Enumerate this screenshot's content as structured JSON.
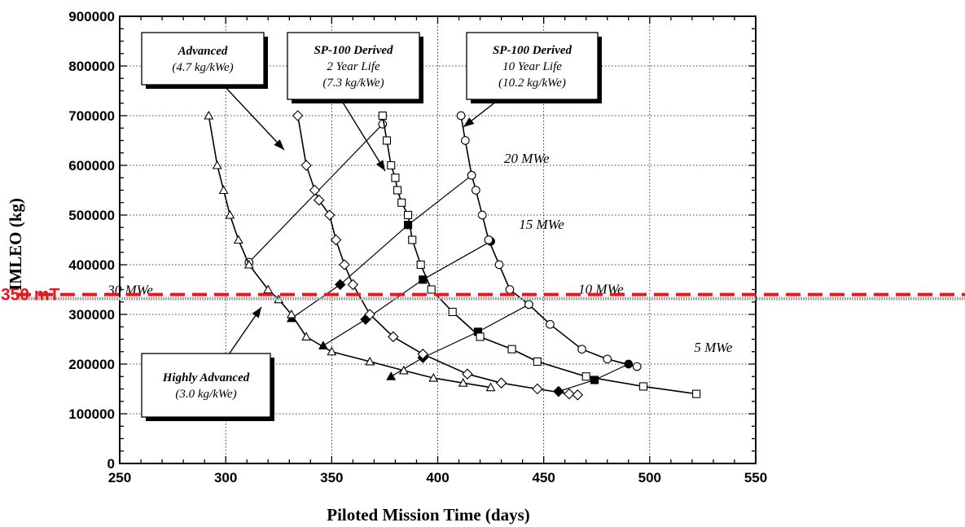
{
  "chart_data": {
    "type": "line",
    "title": "",
    "xlabel": "Piloted Mission Time (days)",
    "ylabel": "IMLEO (kg)",
    "xlim": [
      250,
      550
    ],
    "ylim": [
      0,
      900000
    ],
    "x_ticks": [
      250,
      300,
      350,
      400,
      450,
      500,
      550
    ],
    "y_ticks": [
      0,
      100000,
      200000,
      300000,
      400000,
      500000,
      600000,
      700000,
      800000,
      900000
    ],
    "grid": true,
    "series": [
      {
        "name": "Highly Advanced",
        "label_lines": [
          "Highly Advanced",
          "(3.0 kg/kWe)"
        ],
        "marker": "triangle",
        "points": [
          [
            292,
            700000
          ],
          [
            296,
            600000
          ],
          [
            299,
            550000
          ],
          [
            302,
            500000
          ],
          [
            306,
            450000
          ],
          [
            311,
            400000
          ],
          [
            320,
            350000
          ],
          [
            325,
            330000
          ],
          [
            331,
            300000
          ],
          [
            338,
            255000
          ],
          [
            350,
            225000
          ],
          [
            368,
            205000
          ],
          [
            384,
            187000
          ],
          [
            398,
            172000
          ],
          [
            412,
            162000
          ],
          [
            425,
            153000
          ]
        ]
      },
      {
        "name": "Advanced",
        "label_lines": [
          "Advanced",
          "(4.7 kg/kWe)"
        ],
        "marker": "diamond",
        "points": [
          [
            334,
            700000
          ],
          [
            338,
            600000
          ],
          [
            342,
            550000
          ],
          [
            344,
            530000
          ],
          [
            349,
            500000
          ],
          [
            352,
            450000
          ],
          [
            356,
            400000
          ],
          [
            360,
            360000
          ],
          [
            368,
            300000
          ],
          [
            379,
            255000
          ],
          [
            393,
            220000
          ],
          [
            414,
            180000
          ],
          [
            430,
            162000
          ],
          [
            447,
            150000
          ],
          [
            462,
            140000
          ],
          [
            466,
            138000
          ]
        ]
      },
      {
        "name": "SP-100 Derived 2 Year Life",
        "label_lines": [
          "SP-100 Derived",
          "2 Year Life",
          "(7.3 kg/kWe)"
        ],
        "marker": "square",
        "points": [
          [
            374,
            700000
          ],
          [
            376,
            650000
          ],
          [
            378,
            600000
          ],
          [
            380,
            575000
          ],
          [
            381,
            550000
          ],
          [
            383,
            525000
          ],
          [
            386,
            500000
          ],
          [
            388,
            450000
          ],
          [
            392,
            400000
          ],
          [
            397,
            350000
          ],
          [
            407,
            305000
          ],
          [
            420,
            255000
          ],
          [
            435,
            230000
          ],
          [
            447,
            205000
          ],
          [
            470,
            175000
          ],
          [
            497,
            155000
          ],
          [
            522,
            140000
          ]
        ]
      },
      {
        "name": "SP-100 Derived 10 Year Life",
        "label_lines": [
          "SP-100 Derived",
          "10 Year Life",
          "(10.2 kg/kWe)"
        ],
        "marker": "circle",
        "points": [
          [
            411,
            700000
          ],
          [
            413,
            650000
          ],
          [
            416,
            580000
          ],
          [
            418,
            550000
          ],
          [
            421,
            500000
          ],
          [
            424,
            450000
          ],
          [
            429,
            400000
          ],
          [
            434,
            350000
          ],
          [
            443,
            320000
          ],
          [
            453,
            280000
          ],
          [
            468,
            230000
          ],
          [
            480,
            210000
          ],
          [
            494,
            195000
          ]
        ]
      }
    ],
    "power_lines": [
      {
        "label": "30 MWe",
        "points": [
          [
            311,
            405000
          ],
          [
            374,
            683000
          ]
        ]
      },
      {
        "label": "20 MWe",
        "points": [
          [
            331,
            292000
          ],
          [
            354,
            360000
          ],
          [
            386,
            480000
          ],
          [
            416,
            580000
          ]
        ]
      },
      {
        "label": "15 MWe",
        "points": [
          [
            346,
            237000
          ],
          [
            366,
            290000
          ],
          [
            393,
            370000
          ],
          [
            425,
            447000
          ]
        ]
      },
      {
        "label": "10 MWe",
        "points": [
          [
            378,
            175000
          ],
          [
            393,
            213000
          ],
          [
            419,
            265000
          ],
          [
            443,
            320000
          ]
        ]
      },
      {
        "label": "5 MWe",
        "points": [
          [
            457,
            145000
          ],
          [
            474,
            168000
          ],
          [
            490,
            200000
          ]
        ]
      }
    ],
    "reference_line": {
      "label": "350 mT",
      "y": 340000,
      "color": "#e8161b"
    }
  }
}
